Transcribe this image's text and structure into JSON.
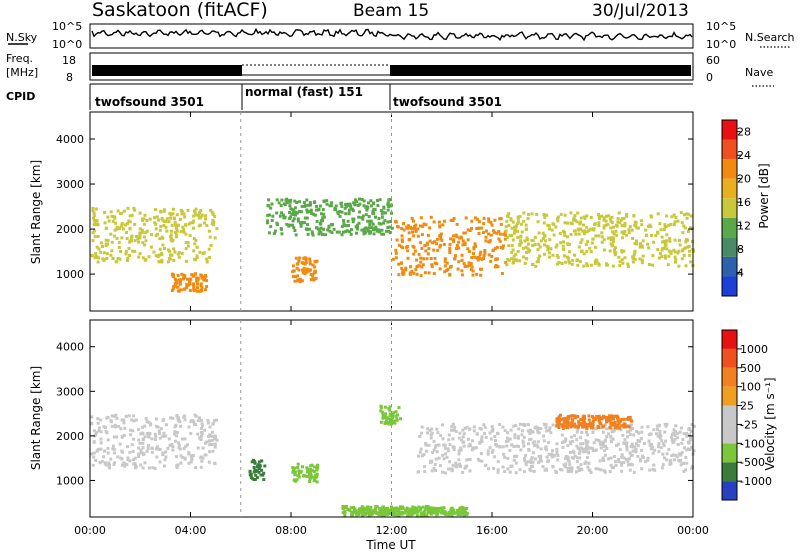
{
  "header": {
    "station": "Saskatoon (fitACF)",
    "beam": "Beam 15",
    "date": "30/Jul/2013"
  },
  "noise_panel": {
    "left_label": "N.Sky",
    "right_label": "N.Search",
    "ticks": [
      "10^5",
      "10^0"
    ]
  },
  "freq_panel": {
    "left_label_1": "Freq.",
    "left_label_2": "[MHz]",
    "left_ticks": [
      "18",
      "8"
    ],
    "right_ticks": [
      "60",
      "0"
    ],
    "right_label": "Nave"
  },
  "cpid_panel": {
    "label": "CPID",
    "segments": [
      {
        "text": "twofsound 3501",
        "start_hour": 0,
        "end_hour": 6
      },
      {
        "text": "normal (fast) 151",
        "start_hour": 6,
        "end_hour": 12
      },
      {
        "text": "twofsound 3501",
        "start_hour": 12,
        "end_hour": 24
      }
    ]
  },
  "colors": {
    "power": [
      "#1c3fd8",
      "#2e60b0",
      "#4a8a68",
      "#5aa84a",
      "#c8c83a",
      "#e8b020",
      "#f08a10",
      "#f05020",
      "#e81010"
    ],
    "velocity": [
      "#2840c0",
      "#3a7c3a",
      "#7ac83a",
      "#c8c8c8",
      "#c8c8c8",
      "#f0a020",
      "#f08020",
      "#f05020",
      "#e81010"
    ]
  },
  "chart_data": [
    {
      "type": "heatmap",
      "title": "",
      "xlabel": "Time UT",
      "ylabel": "Slant Range [km]",
      "xlim": [
        0,
        24
      ],
      "ylim": [
        180,
        4600
      ],
      "x_ticks": [
        "00:00",
        "04:00",
        "08:00",
        "12:00",
        "16:00",
        "20:00",
        "00:00"
      ],
      "y_ticks": [
        1000,
        2000,
        3000,
        4000
      ],
      "colorbar": {
        "label": "Power [dB]",
        "ticks": [
          4,
          8,
          12,
          16,
          20,
          24,
          28
        ],
        "range": [
          0,
          30
        ]
      },
      "echo_regions": [
        {
          "name": "band",
          "start_hour": 0.0,
          "end_hour": 5.0,
          "range_low_km": 1300,
          "range_high_km": 2500,
          "power_db": 14
        },
        {
          "name": "blob",
          "start_hour": 3.2,
          "end_hour": 4.6,
          "range_low_km": 650,
          "range_high_km": 1050,
          "power_db": 22
        },
        {
          "name": "blob",
          "start_hour": 8.0,
          "end_hour": 9.0,
          "range_low_km": 850,
          "range_high_km": 1400,
          "power_db": 20
        },
        {
          "name": "band",
          "start_hour": 7.0,
          "end_hour": 12.0,
          "range_low_km": 1900,
          "range_high_km": 2700,
          "power_db": 10
        },
        {
          "name": "band",
          "start_hour": 12.0,
          "end_hour": 16.5,
          "range_low_km": 1000,
          "range_high_km": 2300,
          "power_db": 20
        },
        {
          "name": "band",
          "start_hour": 16.5,
          "end_hour": 24.0,
          "range_low_km": 1200,
          "range_high_km": 2400,
          "power_db": 14
        }
      ]
    },
    {
      "type": "heatmap",
      "title": "",
      "xlabel": "Time UT",
      "ylabel": "Slant Range [km]",
      "xlim": [
        0,
        24
      ],
      "ylim": [
        180,
        4600
      ],
      "x_ticks": [
        "00:00",
        "04:00",
        "08:00",
        "12:00",
        "16:00",
        "20:00",
        "00:00"
      ],
      "y_ticks": [
        1000,
        2000,
        3000,
        4000
      ],
      "colorbar": {
        "label": "Velocity [m s⁻¹]",
        "ticks": [
          1000,
          500,
          100,
          25,
          -25,
          -100,
          -500,
          -1000
        ]
      },
      "echo_regions": [
        {
          "name": "ground-scatter",
          "start_hour": 0.0,
          "end_hour": 5.0,
          "range_low_km": 1300,
          "range_high_km": 2500,
          "velocity_ms": 0
        },
        {
          "name": "blob",
          "start_hour": 6.3,
          "end_hour": 6.9,
          "range_low_km": 1050,
          "range_high_km": 1500,
          "velocity_ms": -700
        },
        {
          "name": "blob",
          "start_hour": 8.0,
          "end_hour": 9.0,
          "range_low_km": 1000,
          "range_high_km": 1400,
          "velocity_ms": -150
        },
        {
          "name": "blob",
          "start_hour": 11.5,
          "end_hour": 12.3,
          "range_low_km": 2300,
          "range_high_km": 2700,
          "velocity_ms": -400
        },
        {
          "name": "ground-scatter",
          "start_hour": 13.0,
          "end_hour": 24.0,
          "range_low_km": 1200,
          "range_high_km": 2300,
          "velocity_ms": 0
        },
        {
          "name": "blob",
          "start_hour": 18.5,
          "end_hour": 21.5,
          "range_low_km": 2200,
          "range_high_km": 2500,
          "velocity_ms": 300
        },
        {
          "name": "near-range",
          "start_hour": 10.0,
          "end_hour": 15.0,
          "range_low_km": 250,
          "range_high_km": 450,
          "velocity_ms": -120
        }
      ]
    }
  ]
}
